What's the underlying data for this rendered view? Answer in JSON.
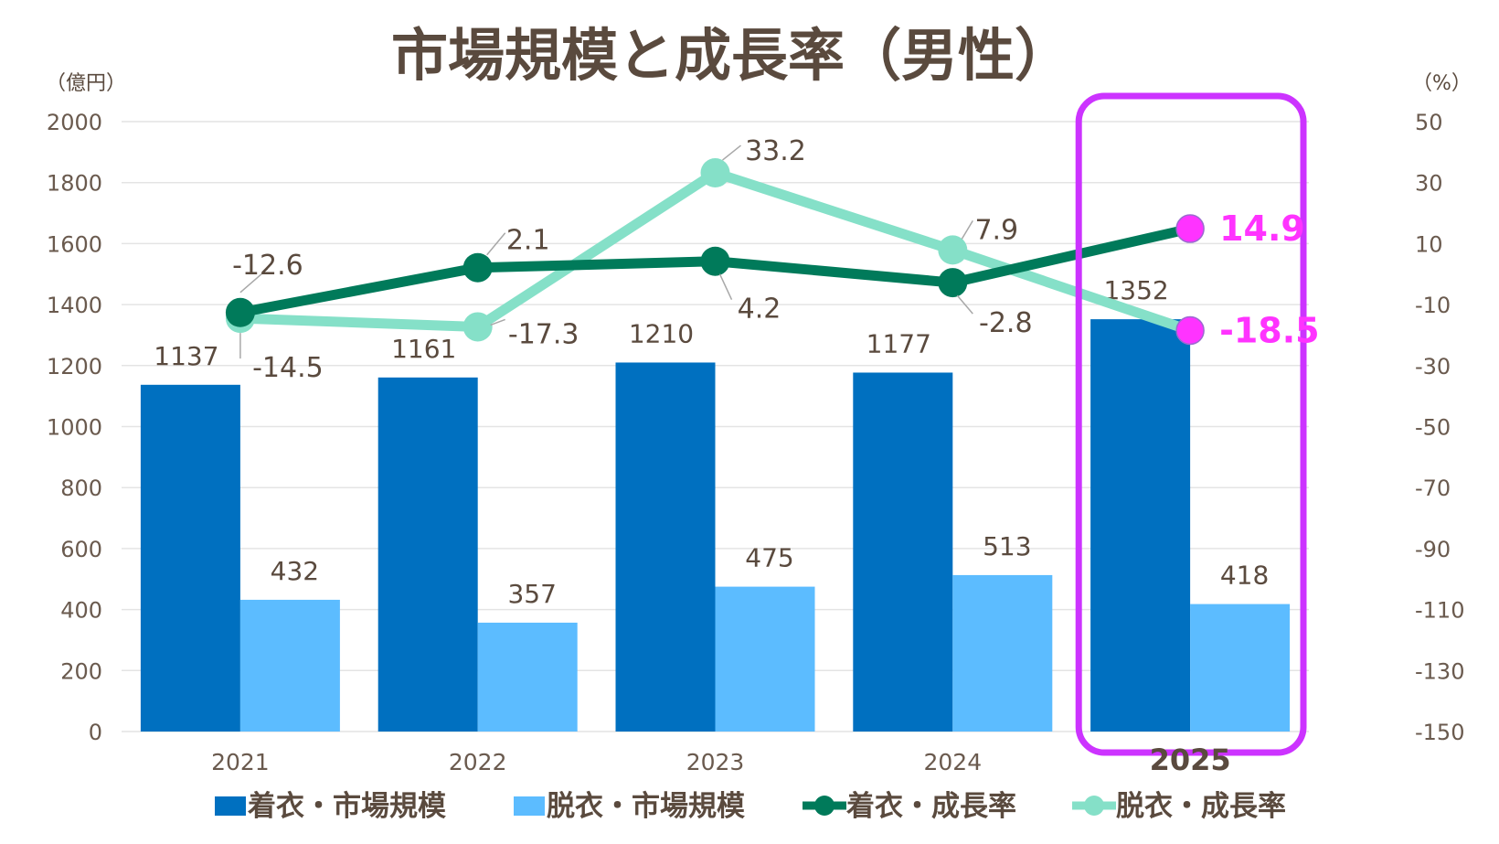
{
  "chart_data": {
    "type": "bar",
    "title": "市場規模と成長率（男性）",
    "left_axis_unit": "（億円）",
    "right_axis_unit": "（%）",
    "categories": [
      "2021",
      "2022",
      "2023",
      "2024",
      "2025"
    ],
    "highlight_category": "2025",
    "left_axis": {
      "ylim": [
        0,
        2000
      ],
      "ticks": [
        "0",
        "200",
        "400",
        "600",
        "800",
        "1000",
        "1200",
        "1400",
        "1600",
        "1800",
        "2000"
      ]
    },
    "right_axis": {
      "ylim": [
        -150,
        50
      ],
      "ticks": [
        "-150",
        "-130",
        "-110",
        "-90",
        "-70",
        "-50",
        "-30",
        "-10",
        "10",
        "30",
        "50"
      ]
    },
    "grid": true,
    "legend_position": "bottom",
    "series": [
      {
        "name": "着衣・市場規模",
        "kind": "bar",
        "axis": "left",
        "color": "#0070c0",
        "values": [
          1137,
          1161,
          1210,
          1177,
          1352
        ],
        "labels": [
          "1137",
          "1161",
          "1210",
          "1177",
          "1352"
        ]
      },
      {
        "name": "脱衣・市場規模",
        "kind": "bar",
        "axis": "left",
        "color": "#5cbcff",
        "values": [
          432,
          357,
          475,
          513,
          418
        ],
        "labels": [
          "432",
          "357",
          "475",
          "513",
          "418"
        ]
      },
      {
        "name": "着衣・成長率",
        "kind": "line",
        "axis": "right",
        "color": "#007a5a",
        "values": [
          -12.6,
          2.1,
          4.2,
          -2.8,
          14.9
        ],
        "labels": [
          "-12.6",
          "2.1",
          "4.2",
          "-2.8",
          "14.9"
        ]
      },
      {
        "name": "脱衣・成長率",
        "kind": "line",
        "axis": "right",
        "color": "#85e0c8",
        "values": [
          -14.5,
          -17.3,
          33.2,
          7.9,
          -18.5
        ],
        "labels": [
          "-14.5",
          "-17.3",
          "33.2",
          "7.9",
          "-18.5"
        ]
      }
    ],
    "highlight_color": "#cc33ff",
    "highlight_point_color": "#ff33ff"
  }
}
